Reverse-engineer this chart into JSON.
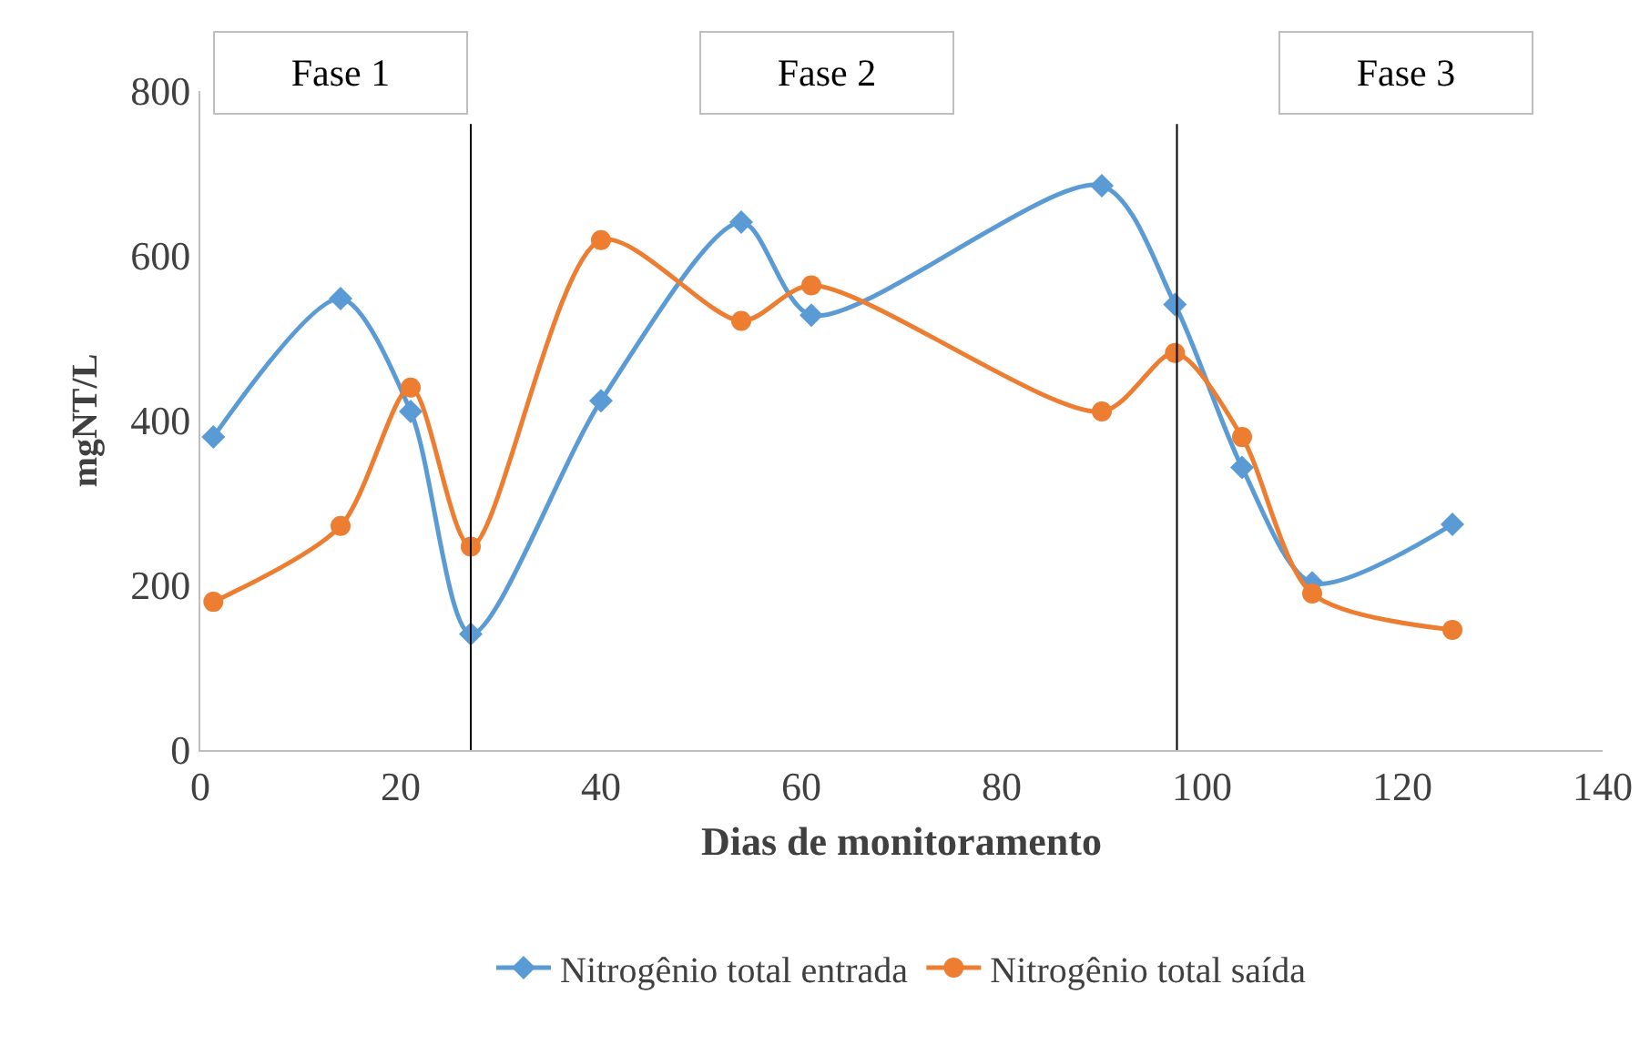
{
  "chart_data": {
    "type": "line",
    "xlabel": "Dias de monitoramento",
    "ylabel": "mgNT/L",
    "xlim": [
      0,
      140
    ],
    "xticks": [
      0,
      20,
      40,
      60,
      80,
      100,
      120,
      140
    ],
    "ylim": [
      0,
      800
    ],
    "yticks": [
      0,
      200,
      400,
      600,
      800
    ],
    "grid": false,
    "legend": "bottom",
    "line_style": "solid",
    "x": [
      1.3,
      14,
      21,
      27,
      40,
      54,
      61,
      90,
      97.3,
      104,
      111,
      125
    ],
    "series": [
      {
        "name": "Nitrogênio total entrada",
        "color": "#5b9bd5",
        "marker": "diamond",
        "values": [
          380,
          548,
          411,
          141,
          424,
          641,
          528,
          685,
          541,
          343,
          203,
          274
        ]
      },
      {
        "name": "Nitrogênio total saída",
        "color": "#ed7d31",
        "marker": "circle",
        "values": [
          180,
          272,
          440,
          247,
          619,
          521,
          564,
          411,
          482,
          380,
          190,
          146
        ]
      }
    ],
    "ref_lines": [
      {
        "axis": "x",
        "value": 27,
        "color": "#000000"
      },
      {
        "axis": "x",
        "value": 97.5,
        "color": "#000000"
      }
    ],
    "annotations": [
      "Fase 1",
      "Fase 2",
      "Fase 3"
    ]
  }
}
